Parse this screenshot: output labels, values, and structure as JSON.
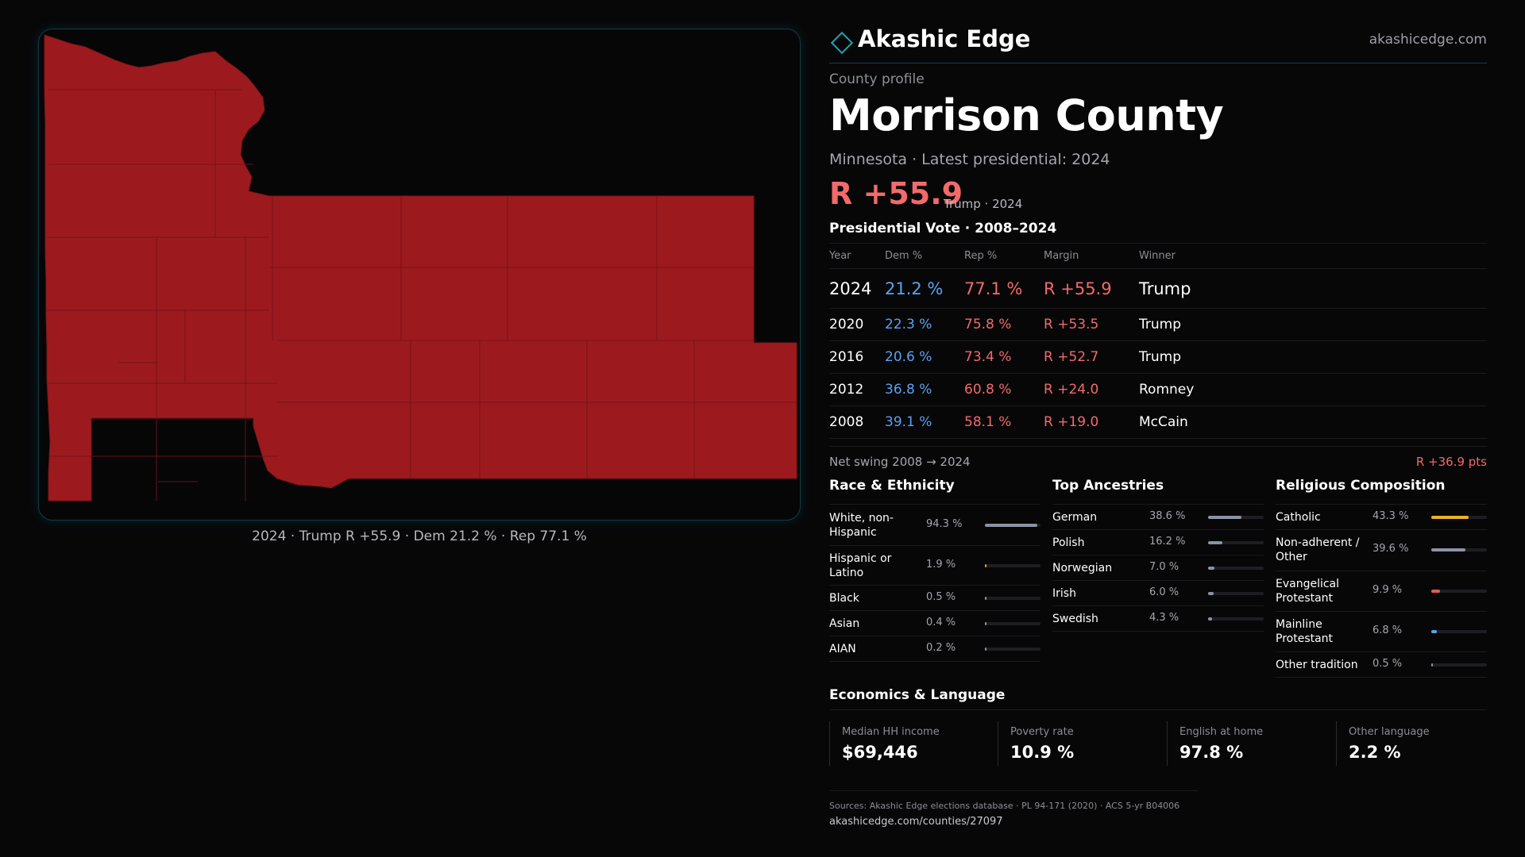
{
  "colors": {
    "background": "#070708",
    "accent": "#1fa4b4",
    "republican": "#f26a6a",
    "democrat": "#5aa2f0",
    "map_fill": "#9c1a1e"
  },
  "map": {
    "caption": "2024 · Trump R +55.9 · Dem 21.2 % · Rep 77.1 %"
  },
  "header": {
    "brand": "Akashic Edge",
    "logo_icon": "diamond-outline-icon",
    "site": "akashicedge.com"
  },
  "profile": {
    "eyebrow": "County profile",
    "county": "Morrison County",
    "subtitle": "Minnesota · Latest presidential: 2024",
    "margin": "R +55.9",
    "margin_note": "Trump · 2024"
  },
  "vote": {
    "title": "Presidential Vote · 2008–2024",
    "headers": {
      "year": "Year",
      "dem": "Dem %",
      "rep": "Rep %",
      "margin": "Margin",
      "winner": "Winner"
    },
    "rows": [
      {
        "year": "2024",
        "dem": "21.2 %",
        "rep": "77.1 %",
        "margin": "R +55.9",
        "winner": "Trump"
      },
      {
        "year": "2020",
        "dem": "22.3 %",
        "rep": "75.8 %",
        "margin": "R +53.5",
        "winner": "Trump"
      },
      {
        "year": "2016",
        "dem": "20.6 %",
        "rep": "73.4 %",
        "margin": "R +52.7",
        "winner": "Trump"
      },
      {
        "year": "2012",
        "dem": "36.8 %",
        "rep": "60.8 %",
        "margin": "R +24.0",
        "winner": "Romney"
      },
      {
        "year": "2008",
        "dem": "39.1 %",
        "rep": "58.1 %",
        "margin": "R +19.0",
        "winner": "McCain"
      }
    ],
    "swing_label": "Net swing 2008 → 2024",
    "swing_value": "R +36.9 pts"
  },
  "race": {
    "title": "Race & Ethnicity",
    "items": [
      {
        "label": "White, non-Hispanic",
        "value": "94.3 %",
        "pct": 94.3,
        "color": "#8a93a6"
      },
      {
        "label": "Hispanic or Latino",
        "value": "1.9 %",
        "pct": 1.9,
        "color": "#e0a020"
      },
      {
        "label": "Black",
        "value": "0.5 %",
        "pct": 0.5,
        "color": "#8a93a6"
      },
      {
        "label": "Asian",
        "value": "0.4 %",
        "pct": 0.4,
        "color": "#8a93a6"
      },
      {
        "label": "AIAN",
        "value": "0.2 %",
        "pct": 0.2,
        "color": "#8a93a6"
      }
    ]
  },
  "ancestry": {
    "title": "Top Ancestries",
    "items": [
      {
        "label": "German",
        "value": "38.6 %",
        "pct": 38.6,
        "color": "#8a93a6"
      },
      {
        "label": "Polish",
        "value": "16.2 %",
        "pct": 16.2,
        "color": "#8a93a6"
      },
      {
        "label": "Norwegian",
        "value": "7.0 %",
        "pct": 7.0,
        "color": "#8a93a6"
      },
      {
        "label": "Irish",
        "value": "6.0 %",
        "pct": 6.0,
        "color": "#8a93a6"
      },
      {
        "label": "Swedish",
        "value": "4.3 %",
        "pct": 4.3,
        "color": "#8a93a6"
      }
    ]
  },
  "religion": {
    "title": "Religious Composition",
    "items": [
      {
        "label": "Catholic",
        "value": "43.3 %",
        "pct": 43.3,
        "color": "#e8b422"
      },
      {
        "label": "Non-adherent / Other",
        "value": "39.6 %",
        "pct": 39.6,
        "color": "#8a93a6"
      },
      {
        "label": "Evangelical Protestant",
        "value": "9.9 %",
        "pct": 9.9,
        "color": "#e05a5a"
      },
      {
        "label": "Mainline Protestant",
        "value": "6.8 %",
        "pct": 6.8,
        "color": "#5aa2f0"
      },
      {
        "label": "Other tradition",
        "value": "0.5 %",
        "pct": 0.5,
        "color": "#8a93a6"
      }
    ]
  },
  "economics": {
    "title": "Economics & Language",
    "cards": [
      {
        "label": "Median HH income",
        "value": "$69,446"
      },
      {
        "label": "Poverty rate",
        "value": "10.9 %"
      },
      {
        "label": "English at home",
        "value": "97.8 %"
      },
      {
        "label": "Other language",
        "value": "2.2 %"
      }
    ]
  },
  "sources": {
    "line1": "Sources: Akashic Edge elections database · PL 94-171 (2020) · ACS 5-yr B04006",
    "line2": "akashicedge.com/counties/27097"
  }
}
